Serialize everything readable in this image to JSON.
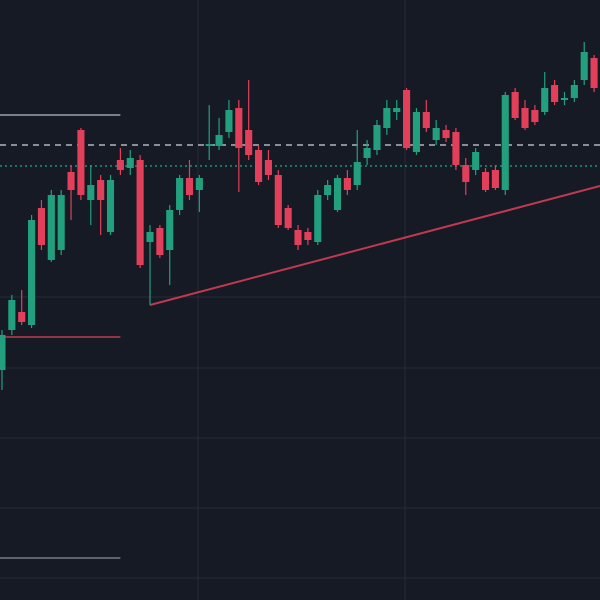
{
  "chart_data": {
    "type": "candlestick",
    "xlim": [
      -0.2,
      60.6
    ],
    "ylim": [
      0,
      600
    ],
    "up_color": "#22a07e",
    "down_color": "#e2405a",
    "open": [
      230,
      270,
      288,
      275,
      392,
      340,
      350,
      428,
      470,
      400,
      420,
      368,
      440,
      432,
      440,
      358,
      372,
      350,
      390,
      422,
      410,
      454,
      454,
      468,
      492,
      470,
      450,
      440,
      425,
      392,
      370,
      368,
      358,
      405,
      390,
      422,
      415,
      442,
      450,
      472,
      488,
      510,
      448,
      488,
      460,
      470,
      468,
      435,
      430,
      428,
      430,
      410,
      508,
      492,
      490,
      488,
      515,
      500,
      502,
      520,
      542
    ],
    "high": [
      270,
      305,
      310,
      385,
      400,
      410,
      410,
      435,
      472,
      435,
      425,
      425,
      452,
      450,
      445,
      375,
      375,
      395,
      425,
      440,
      425,
      495,
      482,
      500,
      500,
      520,
      455,
      450,
      430,
      395,
      375,
      372,
      410,
      420,
      425,
      430,
      470,
      460,
      480,
      500,
      500,
      512,
      492,
      500,
      480,
      475,
      472,
      442,
      452,
      432,
      435,
      508,
      512,
      500,
      495,
      528,
      520,
      508,
      520,
      558,
      545
    ],
    "low": [
      210,
      265,
      275,
      272,
      350,
      338,
      345,
      380,
      400,
      375,
      365,
      365,
      425,
      425,
      332,
      295,
      342,
      315,
      385,
      400,
      388,
      440,
      450,
      462,
      408,
      440,
      415,
      420,
      372,
      370,
      350,
      355,
      355,
      400,
      388,
      405,
      410,
      435,
      445,
      465,
      480,
      450,
      445,
      468,
      455,
      458,
      430,
      405,
      425,
      408,
      410,
      405,
      480,
      470,
      475,
      485,
      495,
      495,
      498,
      515,
      508
    ],
    "close": [
      265,
      300,
      278,
      380,
      355,
      405,
      405,
      410,
      405,
      415,
      400,
      420,
      430,
      442,
      335,
      368,
      345,
      390,
      422,
      405,
      422,
      456,
      465,
      490,
      452,
      445,
      418,
      425,
      375,
      372,
      355,
      360,
      405,
      415,
      422,
      410,
      438,
      452,
      475,
      492,
      492,
      452,
      488,
      472,
      472,
      462,
      435,
      418,
      448,
      410,
      412,
      505,
      482,
      472,
      478,
      512,
      498,
      502,
      515,
      548,
      512
    ],
    "levels": [
      {
        "value": 485,
        "end": 12,
        "color": "#b8bcc6",
        "style": "solid"
      },
      {
        "value": 455,
        "end": 60.6,
        "color": "#d0d3da",
        "style": "dashed"
      },
      {
        "value": 434,
        "end": 60.6,
        "color": "#2aa88a",
        "style": "dotted"
      },
      {
        "value": 263,
        "end": 12,
        "color": "#e2405a",
        "style": "solid"
      },
      {
        "value": 42,
        "end": 12,
        "color": "#8a8e98",
        "style": "solid"
      }
    ],
    "trendline": {
      "x": [
        15,
        60.6
      ],
      "y": [
        295,
        414
      ],
      "color": "#c0394f"
    }
  }
}
